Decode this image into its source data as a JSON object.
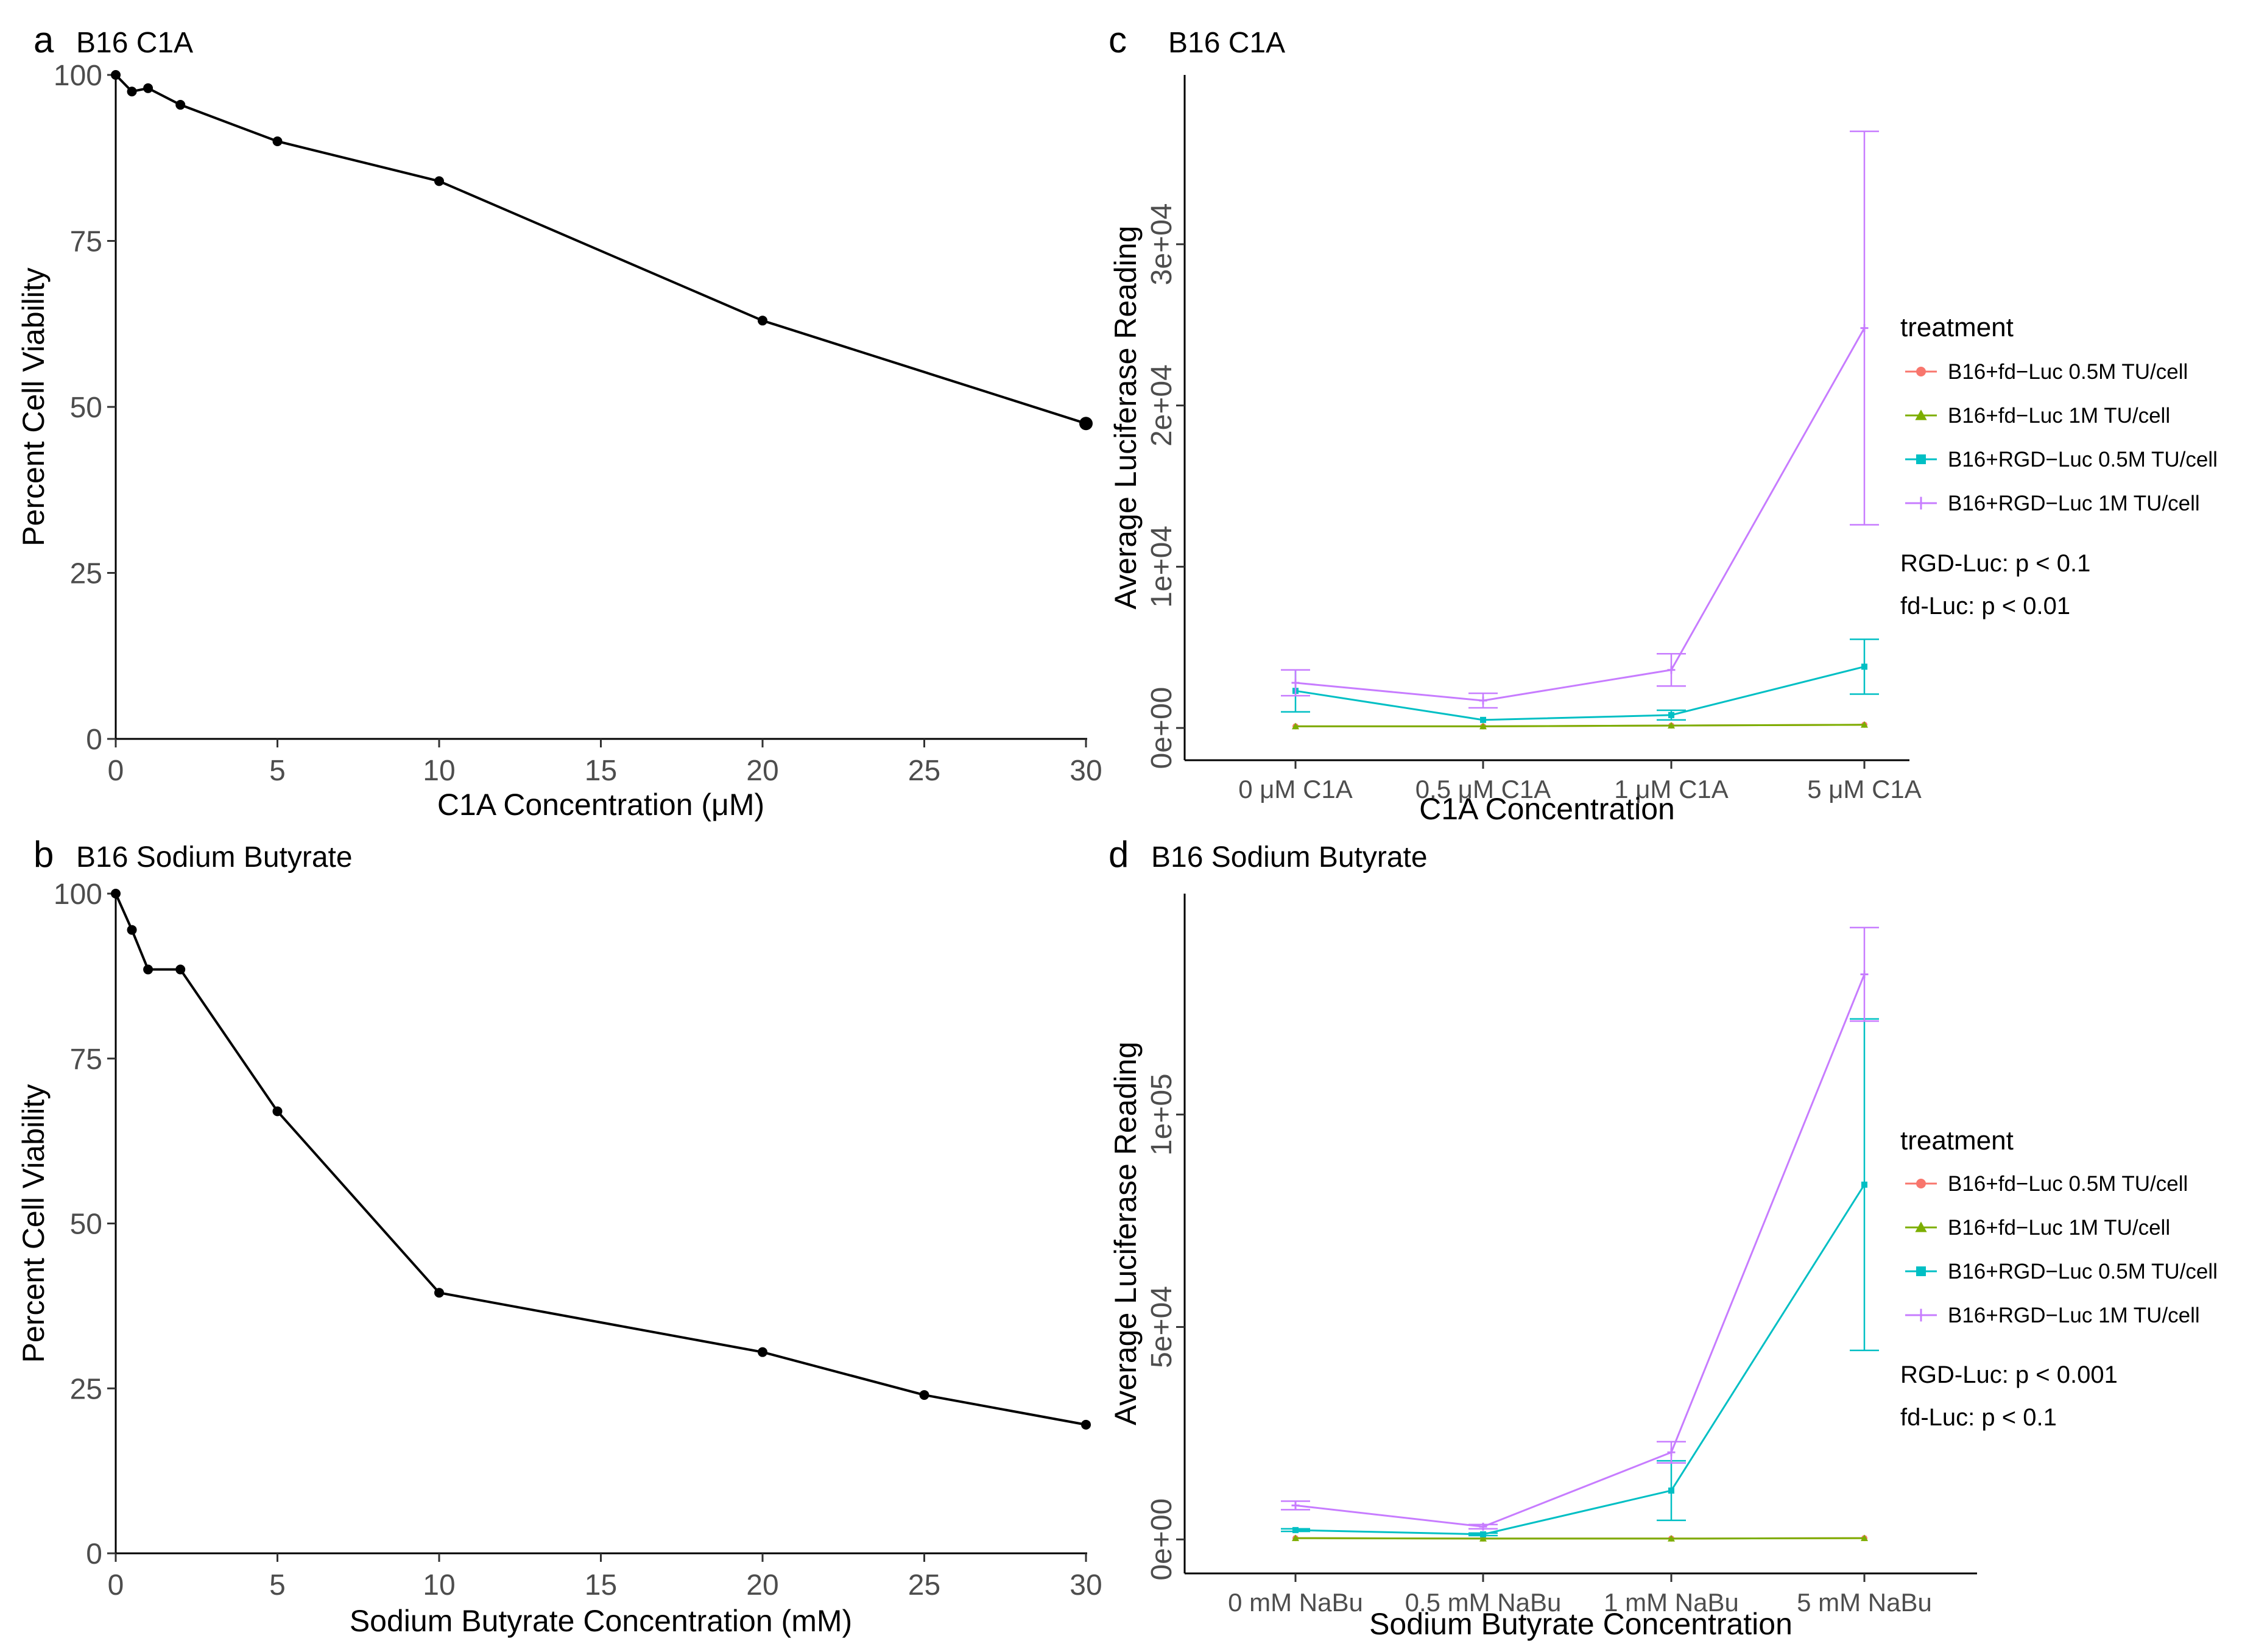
{
  "chart_data": [
    {
      "panel": "a",
      "title": "B16 C1A",
      "type": "line",
      "xlabel": "C1A Concentration (μM)",
      "ylabel": "Percent Cell Viability",
      "xlim": [
        0,
        30
      ],
      "ylim": [
        0,
        100
      ],
      "xticks": [
        0,
        5,
        10,
        15,
        20,
        25,
        30
      ],
      "yticks": [
        0,
        25,
        50,
        75,
        100
      ],
      "x": [
        0,
        0.5,
        1,
        2,
        5,
        10,
        20,
        30
      ],
      "y": [
        100,
        97.5,
        98,
        95.5,
        90,
        84,
        63,
        47.5
      ],
      "color": "#000000"
    },
    {
      "panel": "b",
      "title": "B16 Sodium Butyrate",
      "type": "line",
      "xlabel": "Sodium Butyrate Concentration (mM)",
      "ylabel": "Percent Cell Viability",
      "xlim": [
        0,
        30
      ],
      "ylim": [
        0,
        100
      ],
      "xticks": [
        0,
        5,
        10,
        15,
        20,
        25,
        30
      ],
      "yticks": [
        0,
        25,
        50,
        75,
        100
      ],
      "x": [
        0,
        0.5,
        1,
        2,
        5,
        10,
        20,
        25,
        30
      ],
      "y": [
        100,
        94.5,
        88.5,
        88.5,
        67,
        39.5,
        30.5,
        24,
        19.5
      ],
      "color": "#000000"
    },
    {
      "panel": "c",
      "title": "B16 C1A",
      "type": "line",
      "xlabel": "C1A Concentration",
      "ylabel": "Average Luciferase Reading",
      "categories": [
        "0 μM C1A",
        "0.5 μM C1A",
        "1 μM C1A",
        "5 μM C1A"
      ],
      "ylim": [
        -2000,
        40500
      ],
      "yticks": [
        0,
        10000,
        20000,
        30000
      ],
      "ytick_labels": [
        "0e+00",
        "1e+04",
        "2e+04",
        "3e+04"
      ],
      "legend_title": "treatment",
      "series": [
        {
          "name": "B16+fd−Luc 0.5M TU/cell",
          "color": "#F8766D",
          "marker": "circle",
          "values": [
            100,
            100,
            150,
            200
          ],
          "errors": [
            0,
            0,
            0,
            0
          ]
        },
        {
          "name": "B16+fd−Luc 1M TU/cell",
          "color": "#7CAE00",
          "marker": "triangle",
          "values": [
            100,
            100,
            150,
            200
          ],
          "errors": [
            0,
            0,
            0,
            0
          ]
        },
        {
          "name": "B16+RGD−Luc 0.5M TU/cell",
          "color": "#00BFC4",
          "marker": "square",
          "values": [
            2300,
            500,
            800,
            3800
          ],
          "errors": [
            1300,
            0,
            300,
            1700
          ]
        },
        {
          "name": "B16+RGD−Luc 1M TU/cell",
          "color": "#C77CFF",
          "marker": "plus",
          "values": [
            2800,
            1700,
            3600,
            24800
          ],
          "errors": [
            800,
            450,
            1000,
            12200
          ]
        }
      ],
      "annotations": [
        "RGD-Luc: p < 0.1",
        "fd-Luc: p < 0.01"
      ]
    },
    {
      "panel": "d",
      "title": "B16 Sodium Butyrate",
      "type": "line",
      "xlabel": "Sodium Butyrate Concentration",
      "ylabel": "Average Luciferase Reading",
      "categories": [
        "0 mM NaBu",
        "0.5 mM NaBu",
        "1 mM NaBu",
        "5 mM NaBu"
      ],
      "ylim": [
        -8000,
        152000
      ],
      "yticks": [
        0,
        50000,
        100000
      ],
      "ytick_labels": [
        "0e+00",
        "5e+04",
        "1e+05"
      ],
      "legend_title": "treatment",
      "series": [
        {
          "name": "B16+fd−Luc 0.5M TU/cell",
          "color": "#F8766D",
          "marker": "circle",
          "values": [
            300,
            200,
            200,
            300
          ],
          "errors": [
            0,
            0,
            0,
            0
          ]
        },
        {
          "name": "B16+fd−Luc 1M TU/cell",
          "color": "#7CAE00",
          "marker": "triangle",
          "values": [
            300,
            200,
            200,
            300
          ],
          "errors": [
            0,
            0,
            0,
            0
          ]
        },
        {
          "name": "B16+RGD−Luc 0.5M TU/cell",
          "color": "#00BFC4",
          "marker": "square",
          "values": [
            2200,
            1200,
            11500,
            83500
          ],
          "errors": [
            300,
            300,
            7000,
            39000
          ]
        },
        {
          "name": "B16+RGD−Luc 1M TU/cell",
          "color": "#C77CFF",
          "marker": "plus",
          "values": [
            8000,
            3000,
            20500,
            133000
          ],
          "errors": [
            1000,
            500,
            2500,
            11000
          ]
        }
      ],
      "annotations": [
        "RGD-Luc: p < 0.001",
        "fd-Luc: p < 0.1"
      ]
    }
  ]
}
